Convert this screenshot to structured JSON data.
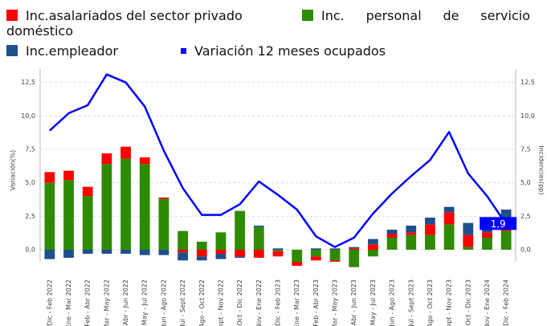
{
  "chart_data": {
    "type": "bar",
    "y_label": "Variación(%)",
    "y2_label": "Incidencias(pp)",
    "categories": [
      "Dic - Feb 2022",
      "Ene - Mar 2022",
      "Feb - Abr 2022",
      "Mar - May 2022",
      "Abr - Jun 2022",
      "May - Jul 2022",
      "Jun - Ago 2022",
      "Jul - Sept 2022",
      "Ago - Oct 2022",
      "Sept - Nov 2022",
      "Oct - Dic 2022",
      "Nov - Ene 2022",
      "Dic - Feb 2023",
      "Ene - Mar 2023",
      "Feb - Abr 2023",
      "Mar - May 2023",
      "Abr - Jun 2023",
      "May - Jul 2023",
      "Jun - Ago 2023",
      "Jul - Sept 2023",
      "Ago - Oct 2023",
      "Sept - Nov 2023",
      "Oct - Dic 2023",
      "Nov - Ene 2024",
      "Dic - Feb 2024"
    ],
    "series": [
      {
        "name": "Inc.asalariados del sector privado",
        "color": "#ff0000",
        "axis": "y2",
        "values": [
          0.8,
          0.7,
          0.7,
          0.8,
          0.9,
          0.5,
          0.1,
          -0.2,
          -0.5,
          -0.3,
          -0.5,
          -0.6,
          -0.4,
          -0.3,
          -0.3,
          -0.1,
          0.1,
          0.4,
          0.3,
          0.2,
          0.8,
          0.9,
          0.9,
          0.4,
          1.0
        ]
      },
      {
        "name": "Inc.empleador",
        "color": "#1f4e8c",
        "axis": "y2",
        "values": [
          -0.7,
          -0.6,
          -0.3,
          -0.3,
          -0.3,
          -0.4,
          -0.4,
          -0.6,
          -0.3,
          -0.4,
          -0.1,
          0.1,
          0.1,
          0.0,
          0.1,
          0.1,
          0.1,
          0.4,
          0.3,
          0.5,
          0.5,
          0.4,
          0.9,
          0.5,
          0.6
        ]
      },
      {
        "name": "Inc. personal de servicio doméstico",
        "color": "#2e8b00",
        "axis": "y2",
        "values": [
          5.0,
          5.2,
          4.0,
          6.4,
          6.8,
          6.4,
          3.8,
          1.4,
          0.6,
          1.3,
          2.9,
          1.7,
          -0.1,
          -0.9,
          -0.5,
          -0.8,
          -1.3,
          -0.5,
          0.9,
          1.1,
          1.1,
          1.9,
          0.2,
          0.9,
          1.4
        ]
      },
      {
        "name": "Variación 12 meses ocupados",
        "color": "#0000ff",
        "type": "line",
        "values": [
          8.9,
          10.2,
          10.8,
          13.1,
          12.5,
          10.7,
          7.4,
          4.6,
          2.6,
          2.6,
          3.4,
          5.1,
          4.1,
          3.0,
          1.0,
          0.2,
          0.9,
          2.7,
          4.2,
          5.5,
          6.7,
          8.8,
          5.7,
          4.0,
          1.9
        ],
        "value_labels": [
          null,
          null,
          null,
          null,
          null,
          null,
          null,
          null,
          null,
          null,
          null,
          null,
          null,
          null,
          null,
          null,
          null,
          null,
          null,
          null,
          null,
          null,
          null,
          null,
          "1,9"
        ]
      }
    ],
    "ylim": [
      -0.9,
      13.5
    ],
    "yticks": [
      {
        "value": 0,
        "label": "0,0"
      },
      {
        "value": 2.5,
        "label": "2,5"
      },
      {
        "value": 5,
        "label": "5,0"
      },
      {
        "value": 7.5,
        "label": "7,5"
      },
      {
        "value": 10,
        "label": "10,0"
      },
      {
        "value": 12.5,
        "label": "12,5"
      }
    ],
    "y2lim": [
      -0.9,
      13.5
    ],
    "y2ticks": [
      {
        "value": 0,
        "label": "0,0"
      },
      {
        "value": 2.5,
        "label": "2,5"
      },
      {
        "value": 5,
        "label": "5,0"
      },
      {
        "value": 7.5,
        "label": "7,5"
      },
      {
        "value": 10,
        "label": "10,0"
      },
      {
        "value": 12.5,
        "label": "12,5"
      }
    ],
    "grid": true
  }
}
